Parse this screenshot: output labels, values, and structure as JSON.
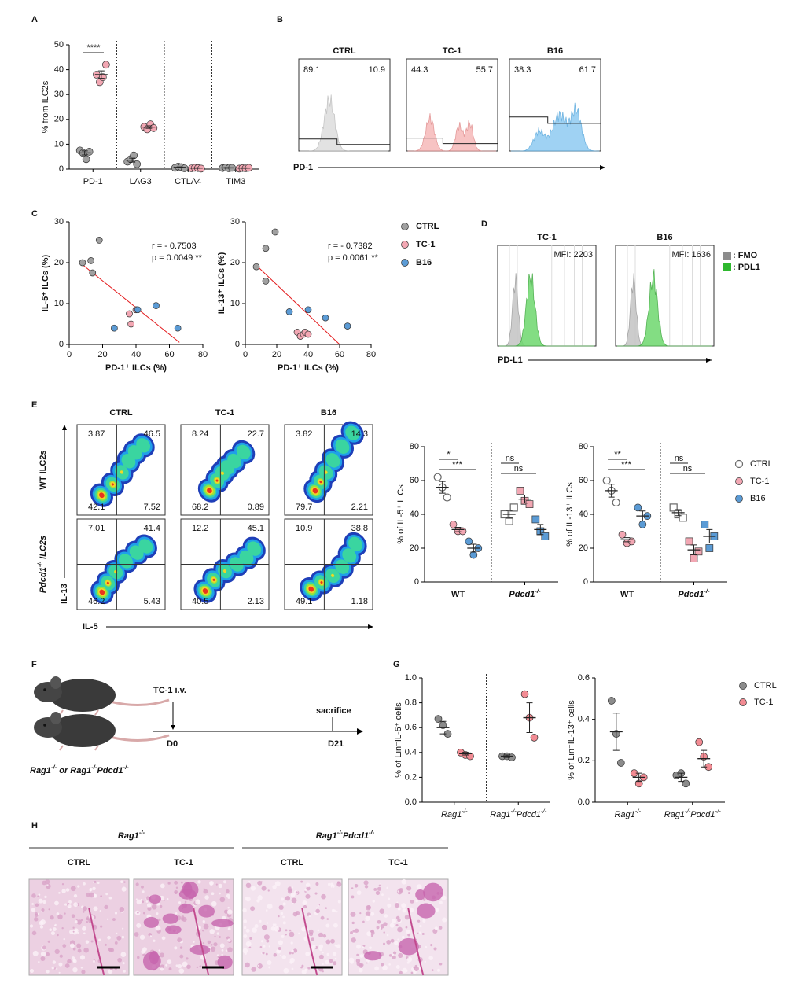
{
  "panels": [
    "A",
    "B",
    "C",
    "D",
    "E",
    "F",
    "G",
    "H"
  ],
  "chart_data": [
    {
      "type": "dot",
      "ylabel": "% from ILC2s",
      "ylim": [
        0,
        50
      ],
      "yticks": [
        0,
        10,
        20,
        30,
        40,
        50
      ],
      "categories": [
        "PD-1",
        "LAG3",
        "CTLA4",
        "TIM3"
      ],
      "separators": true,
      "markers": [
        "circle",
        "circle",
        "circle",
        "circle"
      ],
      "series": [
        {
          "color": "#a0a0a0",
          "values": [
            [
              7.5,
              6.5,
              4,
              7
            ],
            [
              3,
              4,
              5.5,
              2
            ],
            [
              0.5,
              1,
              0.8,
              0.3
            ],
            [
              0.4,
              0.6,
              0.3,
              0.5
            ]
          ],
          "means": [
            6.5,
            3.6,
            0.7,
            0.5
          ],
          "sems": [
            0.8,
            0.8,
            0.2,
            0.1
          ]
        },
        {
          "color": "#f2a7b3",
          "values": [
            [
              38,
              35,
              37,
              42
            ],
            [
              17,
              16,
              18,
              16.5
            ],
            [
              0.3,
              0.5,
              0.4,
              0.2
            ],
            [
              0.2,
              0.4,
              0.3,
              0.5
            ]
          ],
          "means": [
            38,
            16.9,
            0.4,
            0.4
          ],
          "sems": [
            1.5,
            0.5,
            0.1,
            0.1
          ]
        }
      ],
      "annotations": [
        "****"
      ]
    },
    {
      "type": "scatter",
      "xlabel": "PD-1⁺ ILCs (%)",
      "ylabel": "IL-5⁺ ILCs (%)",
      "xlim": [
        0,
        80
      ],
      "xticks": [
        0,
        20,
        40,
        60,
        80
      ],
      "ylim": [
        0,
        30
      ],
      "yticks": [
        0,
        10,
        20,
        30
      ],
      "stats": [
        {
          "text": "r = - 0.7503",
          "color": "#333333"
        },
        {
          "text": "p = 0.0049 **",
          "color": "#e31a1c"
        }
      ],
      "fit": {
        "color": "#e31a1c",
        "x": [
          8,
          66
        ],
        "values": [
          19.5,
          0.5
        ]
      },
      "series": [
        {
          "color": "#a0a0a0",
          "x": [
            8,
            13,
            14,
            18
          ],
          "values": [
            20,
            20.5,
            17.5,
            25.5
          ]
        },
        {
          "color": "#f2a7b3",
          "x": [
            37,
            36,
            40
          ],
          "values": [
            5,
            7.5,
            8.5
          ]
        },
        {
          "color": "#5b9bd5",
          "x": [
            27,
            41,
            52,
            65
          ],
          "values": [
            4,
            8.5,
            9.5,
            4
          ]
        }
      ]
    },
    {
      "type": "scatter",
      "xlabel": "PD-1⁺ ILCs (%)",
      "ylabel": "IL-13⁺ ILCs (%)",
      "xlim": [
        0,
        80
      ],
      "xticks": [
        0,
        20,
        40,
        60,
        80
      ],
      "ylim": [
        0,
        30
      ],
      "yticks": [
        0,
        10,
        20,
        30
      ],
      "stats": [
        {
          "text": "r = - 0.7382",
          "color": "#333333"
        },
        {
          "text": "p = 0.0061 **",
          "color": "#e31a1c"
        }
      ],
      "fit": {
        "color": "#e31a1c",
        "x": [
          8,
          60
        ],
        "values": [
          19,
          0
        ]
      },
      "series": [
        {
          "name": "CTRL",
          "color": "#a0a0a0",
          "x": [
            7,
            13,
            13,
            19
          ],
          "values": [
            19,
            23.5,
            15.5,
            27.5
          ]
        },
        {
          "name": "TC-1",
          "color": "#f2a7b3",
          "x": [
            33,
            35,
            37,
            38,
            40
          ],
          "values": [
            3,
            2,
            2.5,
            3,
            2.5
          ]
        },
        {
          "name": "B16",
          "color": "#5b9bd5",
          "x": [
            28,
            40,
            51,
            65
          ],
          "values": [
            8,
            8.5,
            6.5,
            4.5
          ]
        }
      ]
    },
    {
      "type": "dot",
      "ylabel": "% of IL-5⁺ ILCs",
      "ylim": [
        0,
        80
      ],
      "yticks": [
        0,
        20,
        40,
        60,
        80
      ],
      "categories": [
        "WT",
        "Pdcd1-/-"
      ],
      "separators": true,
      "markers": [
        "circle",
        "square"
      ],
      "series": [
        {
          "color": "#a0a0a0",
          "hollow": true,
          "values": [
            [
              62,
              56,
              50
            ],
            [
              40,
              36,
              44
            ]
          ],
          "means": [
            56,
            40
          ],
          "sems": [
            3.5,
            2.3
          ]
        },
        {
          "color": "#f2a7b3",
          "values": [
            [
              34,
              30,
              30
            ],
            [
              54,
              48,
              46
            ]
          ],
          "means": [
            31,
            49
          ],
          "sems": [
            1.3,
            2.4
          ]
        },
        {
          "color": "#5b9bd5",
          "values": [
            [
              24,
              16,
              20
            ],
            [
              37,
              30,
              27
            ]
          ],
          "means": [
            20,
            31
          ],
          "sems": [
            2.3,
            3
          ]
        }
      ],
      "annotations": [
        "*",
        "***",
        "ns",
        "ns"
      ]
    },
    {
      "type": "dot",
      "ylabel": "% of IL-13⁺ ILCs",
      "ylim": [
        0,
        80
      ],
      "yticks": [
        0,
        20,
        40,
        60,
        80
      ],
      "categories": [
        "WT",
        "Pdcd1-/-"
      ],
      "separators": true,
      "markers": [
        "circle",
        "square"
      ],
      "series": [
        {
          "name": "CTRL",
          "color": "#a0a0a0",
          "hollow": true,
          "values": [
            [
              60,
              54,
              47
            ],
            [
              44,
              40,
              38
            ]
          ],
          "means": [
            54,
            41
          ],
          "sems": [
            3.8,
            1.8
          ]
        },
        {
          "name": "TC-1",
          "color": "#f2a7b3",
          "values": [
            [
              28,
              23,
              24
            ],
            [
              24,
              14,
              18
            ]
          ],
          "means": [
            25,
            19
          ],
          "sems": [
            1.2,
            2.9
          ]
        },
        {
          "name": "B16",
          "color": "#5b9bd5",
          "values": [
            [
              44,
              34,
              39
            ],
            [
              34,
              20,
              27
            ]
          ],
          "means": [
            39,
            27
          ],
          "sems": [
            3,
            4
          ]
        }
      ],
      "annotations": [
        "**",
        "***",
        "ns",
        "ns"
      ]
    },
    {
      "type": "dot",
      "ylabel": "% of Lin⁻IL-5⁺ cells",
      "ylim": [
        0,
        1
      ],
      "yticks": [
        {
          "value": 0,
          "label": "0.0"
        },
        0.2,
        0.4,
        0.6,
        0.8,
        {
          "value": 1,
          "label": "1.0"
        }
      ],
      "categories": [
        "Rag1-/-",
        "Rag1-/-Pdcd1-/-"
      ],
      "separators": true,
      "markers": [
        "circle",
        "circle"
      ],
      "series": [
        {
          "color": "#8c8c8c",
          "values": [
            [
              0.67,
              0.62,
              0.55
            ],
            [
              0.37,
              0.37,
              0.36
            ]
          ],
          "means": [
            0.6,
            0.37
          ],
          "sems": [
            0.05,
            0.01
          ]
        },
        {
          "color": "#f28b93",
          "values": [
            [
              0.4,
              0.38,
              0.37
            ],
            [
              0.87,
              0.68,
              0.52
            ]
          ],
          "means": [
            0.39,
            0.68
          ],
          "sems": [
            0.01,
            0.12
          ]
        }
      ]
    },
    {
      "type": "dot",
      "ylabel": "% of Lin⁻IL-13⁺ cells",
      "ylim": [
        0,
        0.6
      ],
      "yticks": [
        {
          "value": 0,
          "label": "0.0"
        },
        0.2,
        0.4,
        0.6
      ],
      "categories": [
        "Rag1-/-",
        "Rag1-/-Pdcd1-/-"
      ],
      "separators": true,
      "markers": [
        "circle",
        "circle"
      ],
      "series": [
        {
          "name": "CTRL",
          "color": "#8c8c8c",
          "values": [
            [
              0.49,
              0.33,
              0.19
            ],
            [
              0.13,
              0.14,
              0.09
            ]
          ],
          "means": [
            0.34,
            0.12
          ],
          "sems": [
            0.09,
            0.02
          ]
        },
        {
          "name": "TC-1",
          "color": "#f28b93",
          "values": [
            [
              0.14,
              0.09,
              0.12
            ],
            [
              0.29,
              0.22,
              0.17
            ]
          ],
          "means": [
            0.12,
            0.21
          ],
          "sems": [
            0.02,
            0.04
          ]
        }
      ]
    }
  ],
  "panel_b": {
    "axis_label": "PD-1",
    "plots": [
      {
        "title": "CTRL",
        "left": 89.1,
        "right": 10.9
      },
      {
        "title": "TC-1",
        "left": 44.3,
        "right": 55.7
      },
      {
        "title": "B16",
        "left": 38.3,
        "right": 61.7
      }
    ]
  },
  "panel_d": {
    "axis_label": "PD-L1",
    "legend": [
      ": FMO",
      ": PDL1"
    ],
    "plots": [
      {
        "title": "TC-1",
        "mfi": "MFI: 2203"
      },
      {
        "title": "B16",
        "mfi": "MFI: 1636"
      }
    ]
  },
  "panel_e_flow": {
    "columns": [
      "CTRL",
      "TC-1",
      "B16"
    ],
    "rows": [
      "WT ILC2s",
      "Pdcd1-/- ILC2s"
    ],
    "x_label": "IL-5",
    "y_label": "IL-13",
    "quadrants": [
      [
        [
          3.87,
          46.5,
          42.1,
          7.52
        ],
        [
          8.24,
          22.7,
          68.2,
          0.89
        ],
        [
          3.82,
          14.3,
          79.7,
          2.21
        ]
      ],
      [
        [
          7.01,
          41.4,
          46.2,
          5.43
        ],
        [
          12.2,
          45.1,
          40.5,
          2.13
        ],
        [
          10.9,
          38.8,
          49.1,
          1.18
        ]
      ]
    ]
  },
  "panel_f": {
    "inject": "TC-1 i.v.",
    "start": "D0",
    "end_label": "sacrifice",
    "end": "D21",
    "caption": "Rag1-/- or Rag1-/-Pdcd1-/-"
  },
  "panel_h": {
    "groups": [
      {
        "title": "Rag1-/-",
        "images": [
          "CTRL",
          "TC-1"
        ]
      },
      {
        "title": "Rag1-/-Pdcd1-/-",
        "images": [
          "CTRL",
          "TC-1"
        ]
      }
    ]
  }
}
